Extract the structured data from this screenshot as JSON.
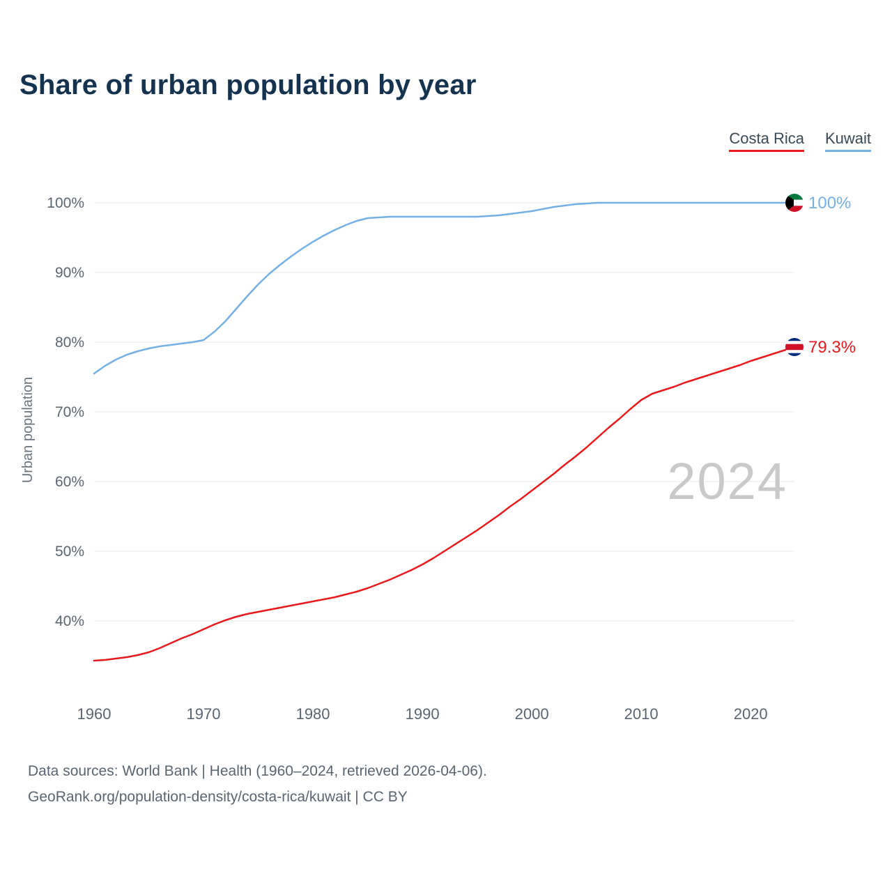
{
  "title": "Share of urban population by year",
  "legend": [
    {
      "label": "Costa Rica",
      "color": "#e8191c"
    },
    {
      "label": "Kuwait",
      "color": "#74b0e4"
    }
  ],
  "watermark": "2024",
  "footer": {
    "line1": "Data sources: World Bank | Health (1960–2024, retrieved 2026-04-06).",
    "line2": "GeoRank.org/population-density/costa-rica/kuwait | CC BY"
  },
  "chart_data": {
    "type": "line",
    "title": "Share of urban population by year",
    "xlabel": "",
    "ylabel": "Urban population",
    "grid": true,
    "legend_position": "top-right",
    "ylim": [
      33,
      101
    ],
    "xlim": [
      1960,
      2024
    ],
    "x_ticks": [
      {
        "value": 1960,
        "label": "1960"
      },
      {
        "value": 1970,
        "label": "1970"
      },
      {
        "value": 1980,
        "label": "1980"
      },
      {
        "value": 1990,
        "label": "1990"
      },
      {
        "value": 2000,
        "label": "2000"
      },
      {
        "value": 2010,
        "label": "2010"
      },
      {
        "value": 2020,
        "label": "2020"
      }
    ],
    "y_ticks": [
      {
        "value": 40,
        "label": "40%"
      },
      {
        "value": 50,
        "label": "50%"
      },
      {
        "value": 60,
        "label": "60%"
      },
      {
        "value": 70,
        "label": "70%"
      },
      {
        "value": 80,
        "label": "80%"
      },
      {
        "value": 90,
        "label": "90%"
      },
      {
        "value": 100,
        "label": "100%"
      }
    ],
    "x": [
      1960,
      1961,
      1962,
      1963,
      1964,
      1965,
      1966,
      1967,
      1968,
      1969,
      1970,
      1971,
      1972,
      1973,
      1974,
      1975,
      1976,
      1977,
      1978,
      1979,
      1980,
      1981,
      1982,
      1983,
      1984,
      1985,
      1986,
      1987,
      1988,
      1989,
      1990,
      1991,
      1992,
      1993,
      1994,
      1995,
      1996,
      1997,
      1998,
      1999,
      2000,
      2001,
      2002,
      2003,
      2004,
      2005,
      2006,
      2007,
      2008,
      2009,
      2010,
      2011,
      2012,
      2013,
      2014,
      2015,
      2016,
      2017,
      2018,
      2019,
      2020,
      2021,
      2022,
      2023,
      2024
    ],
    "series": [
      {
        "name": "Costa Rica",
        "color": "#e8191c",
        "end_label": "79.3%",
        "flag": "costa-rica-flag-icon",
        "values": [
          34.3,
          34.4,
          34.6,
          34.8,
          35.1,
          35.5,
          36.1,
          36.8,
          37.5,
          38.1,
          38.8,
          39.5,
          40.1,
          40.6,
          41.0,
          41.3,
          41.6,
          41.9,
          42.2,
          42.5,
          42.8,
          43.1,
          43.4,
          43.8,
          44.2,
          44.7,
          45.3,
          45.9,
          46.6,
          47.3,
          48.1,
          49.0,
          50.0,
          51.0,
          52.0,
          53.0,
          54.1,
          55.2,
          56.4,
          57.5,
          58.7,
          59.9,
          61.1,
          62.4,
          63.6,
          64.9,
          66.3,
          67.7,
          69.0,
          70.4,
          71.7,
          72.6,
          73.1,
          73.6,
          74.2,
          74.7,
          75.2,
          75.7,
          76.2,
          76.7,
          77.3,
          77.8,
          78.3,
          78.8,
          79.3
        ]
      },
      {
        "name": "Kuwait",
        "color": "#74b0e4",
        "end_label": "100%",
        "flag": "kuwait-flag-icon",
        "values": [
          75.5,
          76.6,
          77.5,
          78.2,
          78.7,
          79.1,
          79.4,
          79.6,
          79.8,
          80.0,
          80.3,
          81.5,
          83.0,
          84.8,
          86.6,
          88.3,
          89.8,
          91.1,
          92.3,
          93.4,
          94.4,
          95.3,
          96.1,
          96.8,
          97.4,
          97.8,
          97.9,
          98.0,
          98.0,
          98.0,
          98.0,
          98.0,
          98.0,
          98.0,
          98.0,
          98.0,
          98.1,
          98.2,
          98.4,
          98.6,
          98.8,
          99.1,
          99.4,
          99.6,
          99.8,
          99.9,
          100.0,
          100.0,
          100.0,
          100.0,
          100.0,
          100.0,
          100.0,
          100.0,
          100.0,
          100.0,
          100.0,
          100.0,
          100.0,
          100.0,
          100.0,
          100.0,
          100.0,
          100.0,
          100.0
        ]
      }
    ],
    "flag_colors": {
      "kuwait_green": "#007a3d",
      "kuwait_red": "#ce1126",
      "kuwait_black": "#000000",
      "costa_rica_blue": "#002b7f",
      "costa_rica_red": "#ce1126"
    }
  }
}
